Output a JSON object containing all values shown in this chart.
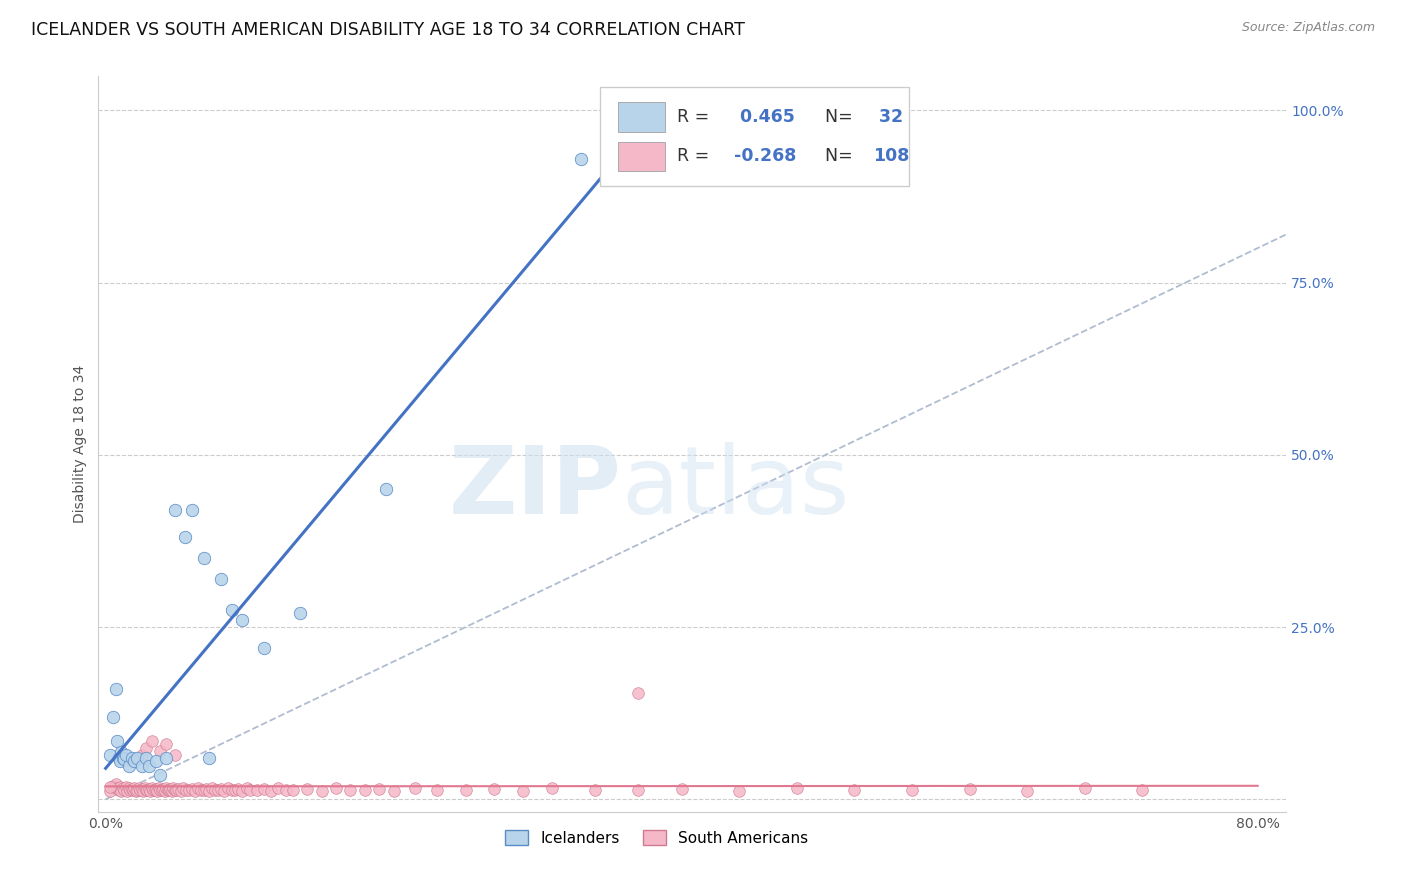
{
  "title": "ICELANDER VS SOUTH AMERICAN DISABILITY AGE 18 TO 34 CORRELATION CHART",
  "source": "Source: ZipAtlas.com",
  "ylabel": "Disability Age 18 to 34",
  "icelander_R": 0.465,
  "icelander_N": 32,
  "southamerican_R": -0.268,
  "southamerican_N": 108,
  "blue_scatter_color": "#b8d4ea",
  "blue_edge_color": "#5b8cc8",
  "blue_line_color": "#4472c4",
  "pink_scatter_color": "#f5b8c8",
  "pink_edge_color": "#d07890",
  "pink_line_color": "#e07890",
  "legend_label_blue": "Icelanders",
  "legend_label_pink": "South Americans",
  "watermark_zip": "ZIP",
  "watermark_atlas": "atlas",
  "background_color": "#ffffff",
  "title_fontsize": 12.5,
  "axis_label_fontsize": 10,
  "tick_fontsize": 10,
  "blue_scatter_x": [
    0.003,
    0.005,
    0.007,
    0.008,
    0.009,
    0.01,
    0.011,
    0.012,
    0.013,
    0.014,
    0.016,
    0.018,
    0.02,
    0.022,
    0.025,
    0.028,
    0.03,
    0.035,
    0.038,
    0.042,
    0.048,
    0.055,
    0.06,
    0.068,
    0.072,
    0.08,
    0.088,
    0.095,
    0.11,
    0.135,
    0.195,
    0.33
  ],
  "blue_scatter_y": [
    0.065,
    0.12,
    0.16,
    0.085,
    0.06,
    0.055,
    0.068,
    0.06,
    0.058,
    0.065,
    0.048,
    0.06,
    0.055,
    0.06,
    0.048,
    0.06,
    0.048,
    0.055,
    0.035,
    0.06,
    0.42,
    0.38,
    0.42,
    0.35,
    0.06,
    0.32,
    0.275,
    0.26,
    0.22,
    0.27,
    0.45,
    0.93
  ],
  "pink_scatter_x": [
    0.003,
    0.005,
    0.006,
    0.007,
    0.008,
    0.009,
    0.01,
    0.011,
    0.012,
    0.013,
    0.014,
    0.015,
    0.016,
    0.017,
    0.018,
    0.019,
    0.02,
    0.021,
    0.022,
    0.023,
    0.024,
    0.025,
    0.026,
    0.027,
    0.028,
    0.029,
    0.03,
    0.031,
    0.032,
    0.033,
    0.034,
    0.035,
    0.036,
    0.037,
    0.038,
    0.039,
    0.04,
    0.041,
    0.042,
    0.043,
    0.044,
    0.045,
    0.046,
    0.047,
    0.048,
    0.049,
    0.05,
    0.052,
    0.054,
    0.056,
    0.058,
    0.06,
    0.062,
    0.064,
    0.066,
    0.068,
    0.07,
    0.072,
    0.074,
    0.076,
    0.078,
    0.08,
    0.082,
    0.085,
    0.088,
    0.09,
    0.092,
    0.095,
    0.098,
    0.1,
    0.105,
    0.11,
    0.115,
    0.12,
    0.125,
    0.13,
    0.14,
    0.15,
    0.16,
    0.17,
    0.18,
    0.19,
    0.2,
    0.215,
    0.23,
    0.25,
    0.27,
    0.29,
    0.31,
    0.34,
    0.37,
    0.4,
    0.44,
    0.48,
    0.52,
    0.56,
    0.6,
    0.64,
    0.68,
    0.72,
    0.025,
    0.028,
    0.032,
    0.038,
    0.042,
    0.048,
    0.003,
    0.37
  ],
  "pink_scatter_y": [
    0.012,
    0.02,
    0.018,
    0.022,
    0.016,
    0.014,
    0.018,
    0.012,
    0.016,
    0.014,
    0.018,
    0.012,
    0.016,
    0.014,
    0.015,
    0.013,
    0.016,
    0.012,
    0.014,
    0.016,
    0.013,
    0.015,
    0.012,
    0.016,
    0.014,
    0.013,
    0.015,
    0.012,
    0.016,
    0.014,
    0.013,
    0.015,
    0.012,
    0.016,
    0.014,
    0.013,
    0.015,
    0.012,
    0.016,
    0.014,
    0.013,
    0.015,
    0.012,
    0.016,
    0.014,
    0.013,
    0.015,
    0.012,
    0.016,
    0.014,
    0.013,
    0.015,
    0.012,
    0.016,
    0.014,
    0.013,
    0.015,
    0.012,
    0.016,
    0.014,
    0.013,
    0.015,
    0.012,
    0.016,
    0.014,
    0.013,
    0.015,
    0.012,
    0.016,
    0.014,
    0.013,
    0.015,
    0.012,
    0.016,
    0.014,
    0.013,
    0.015,
    0.012,
    0.016,
    0.014,
    0.013,
    0.015,
    0.012,
    0.016,
    0.014,
    0.013,
    0.015,
    0.012,
    0.016,
    0.014,
    0.013,
    0.015,
    0.012,
    0.016,
    0.014,
    0.013,
    0.015,
    0.012,
    0.016,
    0.014,
    0.065,
    0.075,
    0.085,
    0.07,
    0.08,
    0.065,
    0.018,
    0.155
  ]
}
